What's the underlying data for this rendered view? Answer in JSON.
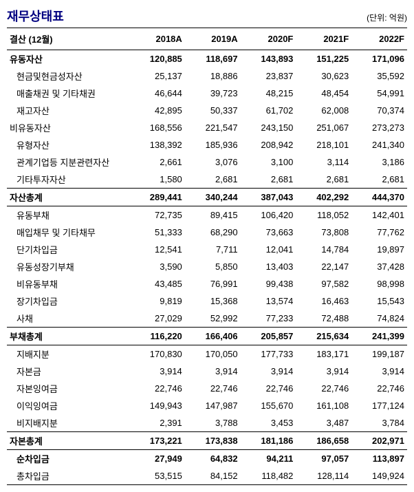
{
  "title": "재무상태표",
  "unit": "(단위: 억원)",
  "header_label": "결산 (12월)",
  "columns": [
    "2018A",
    "2019A",
    "2020F",
    "2021F",
    "2022F"
  ],
  "rows": [
    {
      "label": "유동자산",
      "indent": 0,
      "bold": true,
      "top": false,
      "v": [
        "120,885",
        "118,697",
        "143,893",
        "151,225",
        "171,096"
      ]
    },
    {
      "label": "현금및현금성자산",
      "indent": 1,
      "bold": false,
      "top": false,
      "v": [
        "25,137",
        "18,886",
        "23,837",
        "30,623",
        "35,592"
      ]
    },
    {
      "label": "매출채권 및 기타채권",
      "indent": 1,
      "bold": false,
      "top": false,
      "v": [
        "46,644",
        "39,723",
        "48,215",
        "48,454",
        "54,991"
      ]
    },
    {
      "label": "재고자산",
      "indent": 1,
      "bold": false,
      "top": false,
      "v": [
        "42,895",
        "50,337",
        "61,702",
        "62,008",
        "70,374"
      ]
    },
    {
      "label": "비유동자산",
      "indent": 0,
      "bold": false,
      "top": false,
      "v": [
        "168,556",
        "221,547",
        "243,150",
        "251,067",
        "273,273"
      ]
    },
    {
      "label": "유형자산",
      "indent": 1,
      "bold": false,
      "top": false,
      "v": [
        "138,392",
        "185,936",
        "208,942",
        "218,101",
        "241,340"
      ]
    },
    {
      "label": "관계기업등 지분관련자산",
      "indent": 1,
      "bold": false,
      "top": false,
      "v": [
        "2,661",
        "3,076",
        "3,100",
        "3,114",
        "3,186"
      ]
    },
    {
      "label": "기타투자자산",
      "indent": 1,
      "bold": false,
      "top": false,
      "v": [
        "1,580",
        "2,681",
        "2,681",
        "2,681",
        "2,681"
      ]
    },
    {
      "label": "자산총계",
      "indent": 0,
      "bold": true,
      "top": true,
      "v": [
        "289,441",
        "340,244",
        "387,043",
        "402,292",
        "444,370"
      ]
    },
    {
      "label": "유동부채",
      "indent": 1,
      "bold": false,
      "top": true,
      "v": [
        "72,735",
        "89,415",
        "106,420",
        "118,052",
        "142,401"
      ]
    },
    {
      "label": "매입채무 및 기타채무",
      "indent": 1,
      "bold": false,
      "top": false,
      "v": [
        "51,333",
        "68,290",
        "73,663",
        "73,808",
        "77,762"
      ]
    },
    {
      "label": "단기차입금",
      "indent": 1,
      "bold": false,
      "top": false,
      "v": [
        "12,541",
        "7,711",
        "12,041",
        "14,784",
        "19,897"
      ]
    },
    {
      "label": "유동성장기부채",
      "indent": 1,
      "bold": false,
      "top": false,
      "v": [
        "3,590",
        "5,850",
        "13,403",
        "22,147",
        "37,428"
      ]
    },
    {
      "label": "비유동부채",
      "indent": 1,
      "bold": false,
      "top": false,
      "v": [
        "43,485",
        "76,991",
        "99,438",
        "97,582",
        "98,998"
      ]
    },
    {
      "label": "장기차입금",
      "indent": 1,
      "bold": false,
      "top": false,
      "v": [
        "9,819",
        "15,368",
        "13,574",
        "16,463",
        "15,543"
      ]
    },
    {
      "label": "사채",
      "indent": 1,
      "bold": false,
      "top": false,
      "v": [
        "27,029",
        "52,992",
        "77,233",
        "72,488",
        "74,824"
      ]
    },
    {
      "label": "부채총계",
      "indent": 0,
      "bold": true,
      "top": true,
      "v": [
        "116,220",
        "166,406",
        "205,857",
        "215,634",
        "241,399"
      ]
    },
    {
      "label": "지배지분",
      "indent": 1,
      "bold": false,
      "top": true,
      "v": [
        "170,830",
        "170,050",
        "177,733",
        "183,171",
        "199,187"
      ]
    },
    {
      "label": "자본금",
      "indent": 1,
      "bold": false,
      "top": false,
      "v": [
        "3,914",
        "3,914",
        "3,914",
        "3,914",
        "3,914"
      ]
    },
    {
      "label": "자본잉여금",
      "indent": 1,
      "bold": false,
      "top": false,
      "v": [
        "22,746",
        "22,746",
        "22,746",
        "22,746",
        "22,746"
      ]
    },
    {
      "label": "이익잉여금",
      "indent": 1,
      "bold": false,
      "top": false,
      "v": [
        "149,943",
        "147,987",
        "155,670",
        "161,108",
        "177,124"
      ]
    },
    {
      "label": "비지배지분",
      "indent": 1,
      "bold": false,
      "top": false,
      "v": [
        "2,391",
        "3,788",
        "3,453",
        "3,487",
        "3,784"
      ]
    },
    {
      "label": "자본총계",
      "indent": 0,
      "bold": true,
      "top": true,
      "v": [
        "173,221",
        "173,838",
        "181,186",
        "186,658",
        "202,971"
      ]
    },
    {
      "label": "순차입금",
      "indent": 1,
      "bold": true,
      "top": true,
      "v": [
        "27,949",
        "64,832",
        "94,211",
        "97,057",
        "113,897"
      ]
    },
    {
      "label": "총차입금",
      "indent": 1,
      "bold": false,
      "top": false,
      "v": [
        "53,515",
        "84,152",
        "118,482",
        "128,114",
        "149,924"
      ]
    }
  ]
}
